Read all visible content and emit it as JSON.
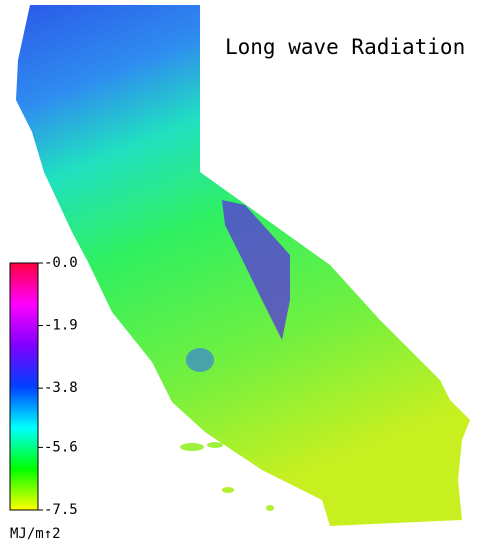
{
  "map": {
    "title": "Long wave Radiation",
    "colorbar": {
      "lim": [
        -7.5,
        0
      ],
      "ticks": [
        {
          "value": 0,
          "label": "-0.0"
        },
        -1.9,
        -3.8,
        -5.6,
        -7.5
      ],
      "unit": "MJ/m↑2",
      "colors": [
        "#ffff00",
        "#00ff00",
        "#00ffff",
        "#0040ff",
        "#8000ff",
        "#ff00ff",
        "#ff0040"
      ]
    }
  }
}
